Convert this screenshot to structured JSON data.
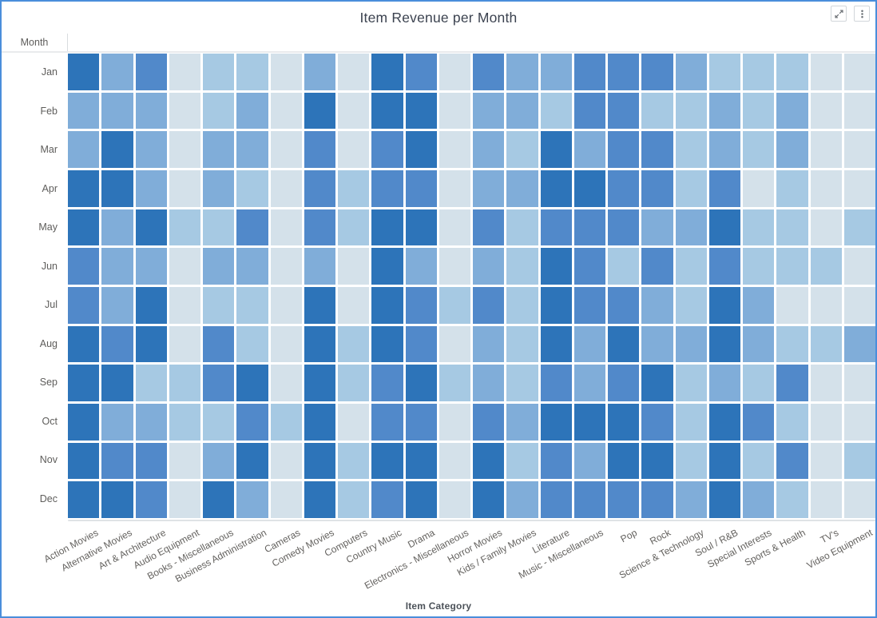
{
  "header": {
    "title": "Item Revenue per Month"
  },
  "toolbar": {
    "icons": {
      "expand": "diagonal-resize-arrows",
      "menu": "vertical-ellipsis"
    }
  },
  "axes": {
    "y_axis_header": "Month",
    "x_axis_label": "Item Category"
  },
  "colors": {
    "panel_border": "#4a8edb",
    "title_text": "#3c4350",
    "axis_text": "#5e5d5b",
    "cell_gap": "#ffffff",
    "scroll_track": "#dfe3e6"
  },
  "chart_data": {
    "type": "heatmap",
    "title": "Item Revenue per Month",
    "xlabel": "Item Category",
    "ylabel": "Month",
    "grid": true,
    "legend_position": "none",
    "x_categories": [
      "Action Movies",
      "Alternative Movies",
      "Art & Architecture",
      "Audio Equipment",
      "Books - Miscellaneous",
      "Business Administration",
      "Cameras",
      "Comedy Movies",
      "Computers",
      "Country Music",
      "Drama",
      "Electronics - Miscellaneous",
      "Horror Movies",
      "Kids / Family Movies",
      "Literature",
      "Music - Miscellaneous",
      "Pop",
      "Rock",
      "Science & Technology",
      "Soul / R&B",
      "Special Interests",
      "Sports & Health",
      "TV's",
      "Video Equipment"
    ],
    "y_categories": [
      "Jan",
      "Feb",
      "Mar",
      "Apr",
      "May",
      "Jun",
      "Jul",
      "Aug",
      "Sep",
      "Oct",
      "Nov",
      "Dec"
    ],
    "value_scale": {
      "description": "relative revenue intensity read from cell shading; 1 = lowest, 5 = highest",
      "range": [
        1,
        5
      ]
    },
    "palette": {
      "1": "#d4e1ea",
      "2": "#a6c9e3",
      "3": "#80add9",
      "4": "#5189ca",
      "5": "#2d74b9"
    },
    "values": [
      [
        5,
        3,
        4,
        1,
        2,
        2,
        1,
        3,
        1,
        5,
        4,
        1,
        4,
        3,
        3,
        4,
        4,
        4,
        3,
        2,
        2,
        2,
        1,
        1
      ],
      [
        3,
        3,
        3,
        1,
        2,
        3,
        1,
        5,
        1,
        5,
        5,
        1,
        3,
        3,
        2,
        4,
        4,
        2,
        2,
        3,
        2,
        3,
        1,
        1
      ],
      [
        3,
        5,
        3,
        1,
        3,
        3,
        1,
        4,
        1,
        4,
        5,
        1,
        3,
        2,
        5,
        3,
        4,
        4,
        2,
        3,
        2,
        3,
        1,
        1
      ],
      [
        5,
        5,
        3,
        1,
        3,
        2,
        1,
        4,
        2,
        4,
        4,
        1,
        3,
        3,
        5,
        5,
        4,
        4,
        2,
        4,
        1,
        2,
        1,
        1
      ],
      [
        5,
        3,
        5,
        2,
        2,
        4,
        1,
        4,
        2,
        5,
        5,
        1,
        4,
        2,
        4,
        4,
        4,
        3,
        3,
        5,
        2,
        2,
        1,
        2
      ],
      [
        4,
        3,
        3,
        1,
        3,
        3,
        1,
        3,
        1,
        5,
        3,
        1,
        3,
        2,
        5,
        4,
        2,
        4,
        2,
        4,
        2,
        2,
        2,
        1
      ],
      [
        4,
        3,
        5,
        1,
        2,
        2,
        1,
        5,
        1,
        5,
        4,
        2,
        4,
        2,
        5,
        4,
        4,
        3,
        2,
        5,
        3,
        1,
        1,
        1
      ],
      [
        5,
        4,
        5,
        1,
        4,
        2,
        1,
        5,
        2,
        5,
        4,
        1,
        3,
        2,
        5,
        3,
        5,
        3,
        3,
        5,
        3,
        2,
        2,
        3
      ],
      [
        5,
        5,
        2,
        2,
        4,
        5,
        1,
        5,
        2,
        4,
        5,
        2,
        3,
        2,
        4,
        3,
        4,
        5,
        2,
        3,
        2,
        4,
        1,
        1
      ],
      [
        5,
        3,
        3,
        2,
        2,
        4,
        2,
        5,
        1,
        4,
        4,
        1,
        4,
        3,
        5,
        5,
        5,
        4,
        2,
        5,
        4,
        2,
        1,
        1
      ],
      [
        5,
        4,
        4,
        1,
        3,
        5,
        1,
        5,
        2,
        5,
        5,
        1,
        5,
        2,
        4,
        3,
        5,
        5,
        2,
        5,
        2,
        4,
        1,
        2
      ],
      [
        5,
        5,
        4,
        1,
        5,
        3,
        1,
        5,
        2,
        4,
        5,
        1,
        5,
        3,
        4,
        4,
        4,
        4,
        3,
        5,
        3,
        2,
        1,
        1
      ]
    ]
  }
}
